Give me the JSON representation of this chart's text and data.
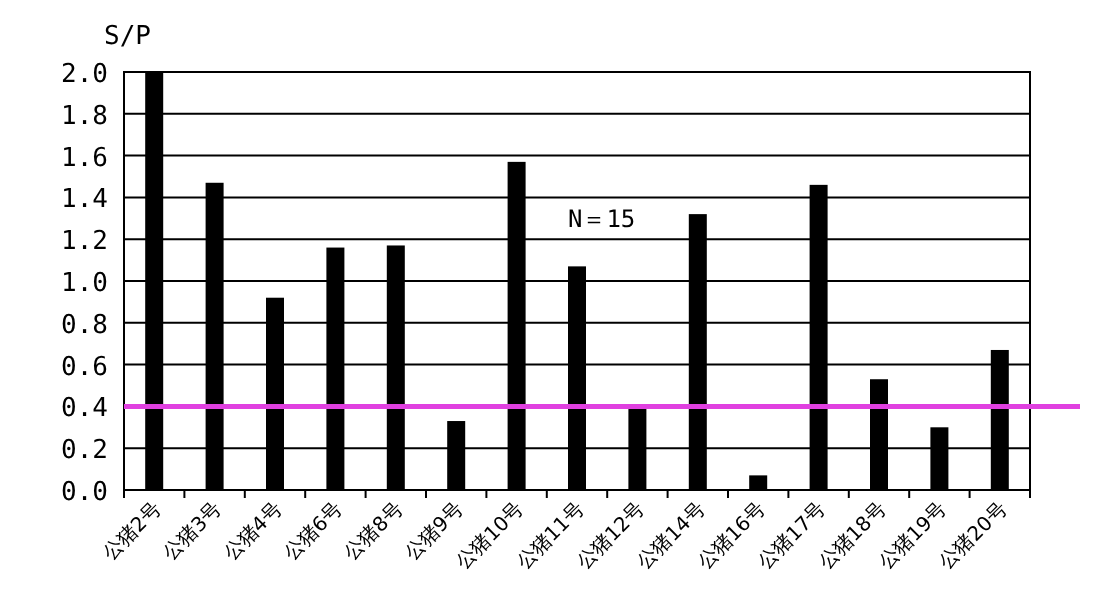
{
  "chart_data": {
    "type": "bar",
    "ylabel": "S/P",
    "categories": [
      "公猪2号",
      "公猪3号",
      "公猪4号",
      "公猪6号",
      "公猪8号",
      "公猪9号",
      "公猪10号",
      "公猪11号",
      "公猪12号",
      "公猪14号",
      "公猪16号",
      "公猪17号",
      "公猪18号",
      "公猪19号",
      "公猪20号"
    ],
    "values": [
      2.0,
      1.47,
      0.92,
      1.16,
      1.17,
      0.33,
      1.57,
      1.07,
      0.39,
      1.32,
      0.07,
      1.46,
      0.53,
      0.3,
      0.67
    ],
    "color": "#000000",
    "ylim": [
      0,
      2
    ],
    "yticks": [
      {
        "value": 0,
        "label": "0.0"
      },
      {
        "value": 0.2,
        "label": "0.2"
      },
      {
        "value": 0.4,
        "label": "0.4"
      },
      {
        "value": 0.6,
        "label": "0.6"
      },
      {
        "value": 0.8,
        "label": "0.8"
      },
      {
        "value": 1,
        "label": "1.0"
      },
      {
        "value": 1.2,
        "label": "1.2"
      },
      {
        "value": 1.4,
        "label": "1.4"
      },
      {
        "value": 1.6,
        "label": "1.6"
      },
      {
        "value": 1.8,
        "label": "1.8"
      },
      {
        "value": 2,
        "label": "2.0"
      }
    ],
    "grid": "y",
    "ref_lines": [
      {
        "axis": "y",
        "value": 0.4,
        "color": "#e040e0"
      }
    ],
    "annotations": [
      "N＝15"
    ]
  }
}
